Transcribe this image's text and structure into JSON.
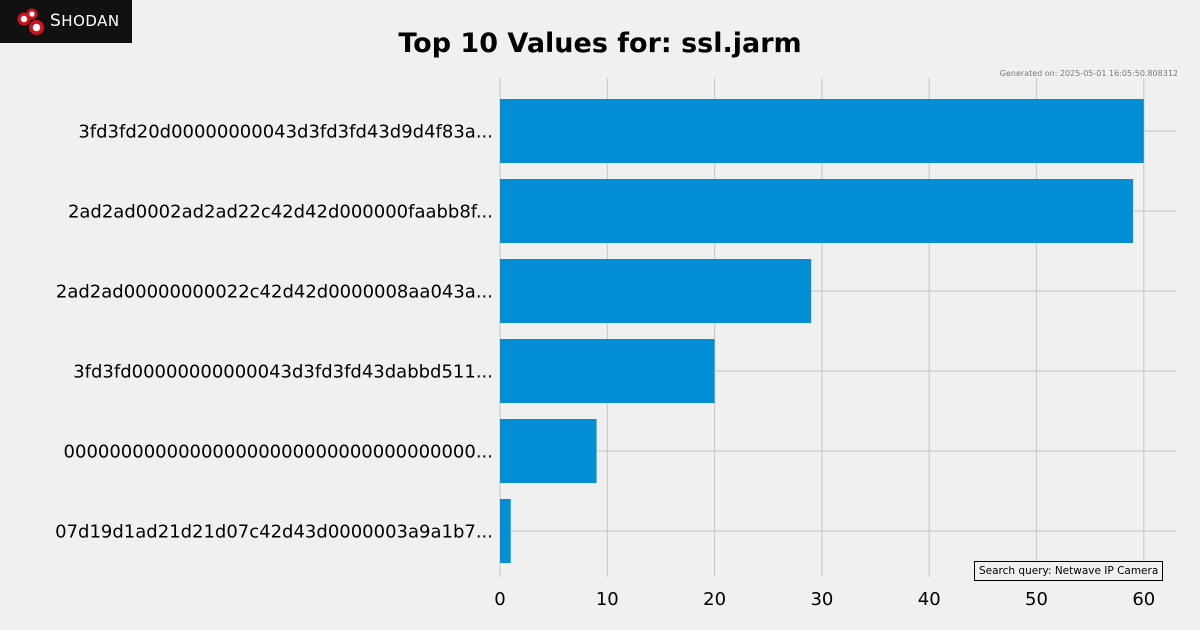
{
  "brand": {
    "logo_text_first": "S",
    "logo_text_rest": "HODAN",
    "logo_colors": [
      "#d0121a",
      "#ffffff"
    ]
  },
  "generated_text": "Generated on: 2025-05-01 16:05:50.808312",
  "search_query_text": "Search query: Netwave IP Camera",
  "colors": {
    "bar": "#038fd6",
    "background": "#f0f0f0",
    "grid": "#cbcbcb"
  },
  "chart_data": {
    "type": "bar",
    "orientation": "horizontal",
    "title": "Top 10 Values for: ssl.jarm",
    "xlabel": "",
    "ylabel": "",
    "categories": [
      "3fd3fd20d00000000043d3fd3fd43d9d4f83a...",
      "2ad2ad0002ad2ad22c42d42d000000faabb8f...",
      "2ad2ad00000000022c42d42d0000008aa043a...",
      "3fd3fd00000000000043d3fd3fd43dabbd511...",
      "000000000000000000000000000000000000...",
      "07d19d1ad21d21d07c42d43d0000003a9a1b7..."
    ],
    "values": [
      60,
      59,
      29,
      20,
      9,
      1
    ],
    "xlim": [
      0,
      63
    ],
    "xticks": [
      0,
      10,
      20,
      30,
      40,
      50,
      60
    ],
    "grid": true,
    "legend": "none"
  }
}
